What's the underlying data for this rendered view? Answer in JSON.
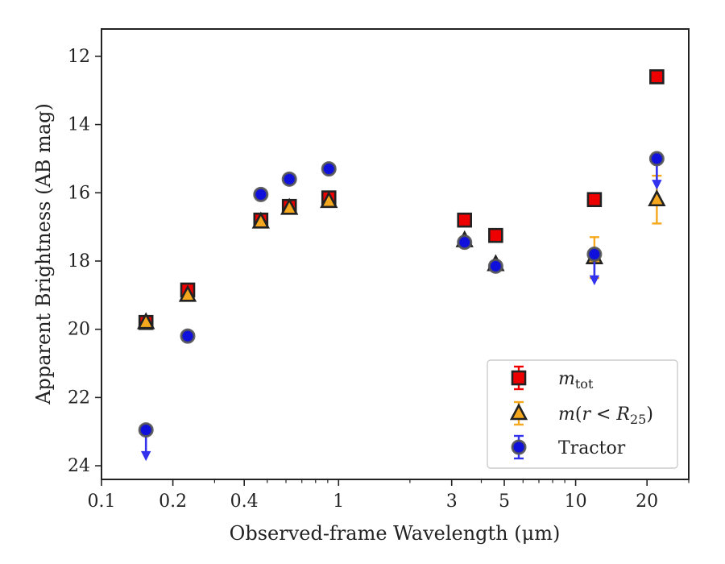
{
  "chart_data": {
    "type": "scatter",
    "xlabel": "Observed-frame Wavelength (μm)",
    "ylabel": "Apparent Brightness (AB mag)",
    "xscale": "log",
    "xlim": [
      0.1,
      30
    ],
    "ylim": [
      24.4,
      11.2
    ],
    "y_inverted": true,
    "xticks": [
      {
        "value": 0.1,
        "label": "0.1"
      },
      {
        "value": 0.2,
        "label": "0.2"
      },
      {
        "value": 0.4,
        "label": "0.4"
      },
      {
        "value": 1,
        "label": "1"
      },
      {
        "value": 3,
        "label": "3"
      },
      {
        "value": 5,
        "label": "5"
      },
      {
        "value": 10,
        "label": "10"
      },
      {
        "value": 20,
        "label": "20"
      }
    ],
    "yticks": [
      12,
      14,
      16,
      18,
      20,
      22,
      24
    ],
    "legend_position": "lower-right",
    "series": [
      {
        "name": "m_tot",
        "marker": "square",
        "color": "#ee0000",
        "errcolor": "#ee0000",
        "points": [
          {
            "x": 0.154,
            "y": 19.8
          },
          {
            "x": 0.231,
            "y": 18.85
          },
          {
            "x": 0.47,
            "y": 16.8
          },
          {
            "x": 0.62,
            "y": 16.4
          },
          {
            "x": 0.91,
            "y": 16.15
          },
          {
            "x": 3.4,
            "y": 16.8
          },
          {
            "x": 4.6,
            "y": 17.25
          },
          {
            "x": 12.0,
            "y": 16.2
          },
          {
            "x": 22.0,
            "y": 12.6
          }
        ]
      },
      {
        "name": "m(r<R25)",
        "marker": "triangle",
        "color": "#f5a81d",
        "errcolor": "#f5a81d",
        "points": [
          {
            "x": 0.154,
            "y": 19.8
          },
          {
            "x": 0.231,
            "y": 19.0
          },
          {
            "x": 0.47,
            "y": 16.85
          },
          {
            "x": 0.62,
            "y": 16.45
          },
          {
            "x": 0.91,
            "y": 16.25
          },
          {
            "x": 3.4,
            "y": 17.4
          },
          {
            "x": 4.6,
            "y": 18.1
          },
          {
            "x": 12.0,
            "y": 17.9,
            "yerr": 0.6
          },
          {
            "x": 22.0,
            "y": 16.2,
            "yerr": 0.7
          }
        ]
      },
      {
        "name": "Tractor",
        "marker": "circle",
        "color": "#1010dd",
        "errcolor": "#3333ee",
        "points": [
          {
            "x": 0.154,
            "y": 22.95,
            "upper_limit": true
          },
          {
            "x": 0.231,
            "y": 20.2
          },
          {
            "x": 0.47,
            "y": 16.05
          },
          {
            "x": 0.62,
            "y": 15.6
          },
          {
            "x": 0.91,
            "y": 15.3
          },
          {
            "x": 3.4,
            "y": 17.45
          },
          {
            "x": 4.6,
            "y": 18.15
          },
          {
            "x": 12.0,
            "y": 17.8,
            "upper_limit": true
          },
          {
            "x": 22.0,
            "y": 15.0,
            "upper_limit": true
          }
        ]
      }
    ],
    "legend": {
      "entries": [
        {
          "series": "m_tot",
          "label": "mtot"
        },
        {
          "series": "m(r<R25)",
          "label": "m(r < R25)"
        },
        {
          "series": "Tractor",
          "label": "Tractor"
        }
      ]
    }
  }
}
